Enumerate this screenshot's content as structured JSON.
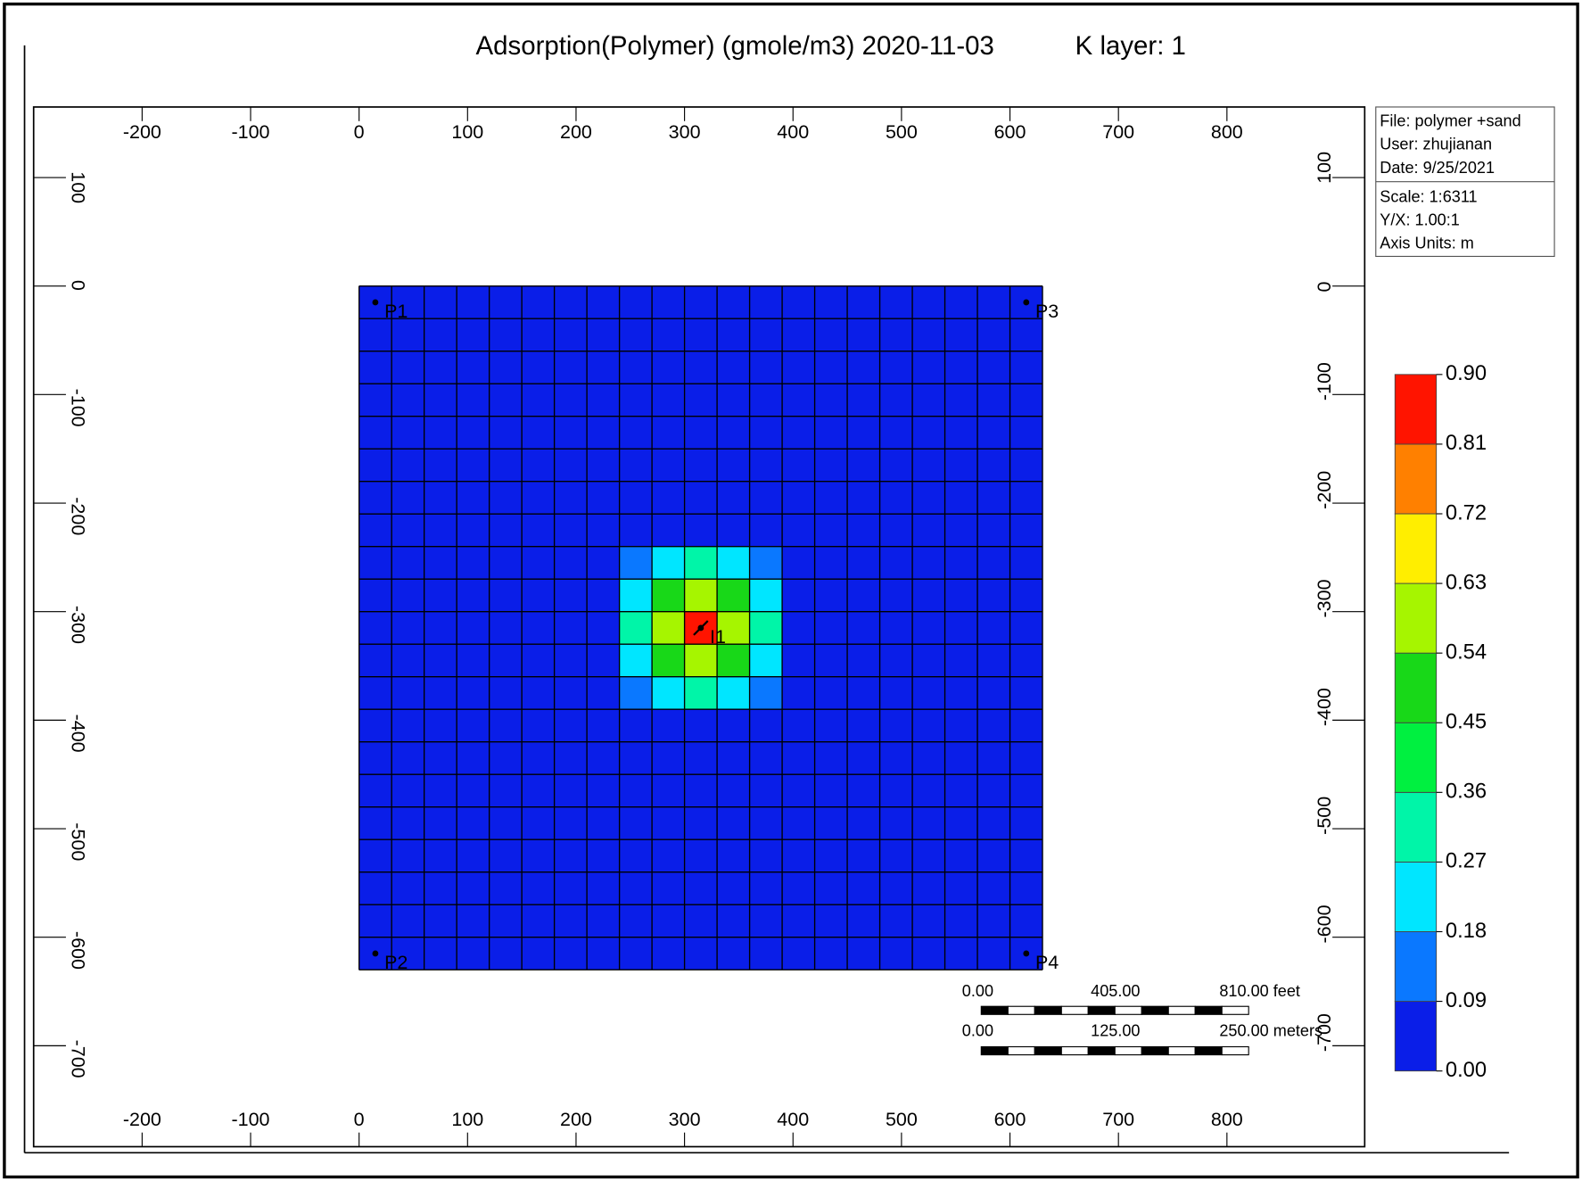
{
  "chart_data": {
    "type": "contour",
    "title": "Adsorption(Polymer) (gmole/m3) 2020-11-03",
    "subtitle": "K layer: 1",
    "xlim": [
      -300,
      927
    ],
    "ylim": [
      -793,
      165
    ],
    "xticks": [
      -200,
      -100,
      0,
      100,
      200,
      300,
      400,
      500,
      600,
      700,
      800
    ],
    "yticks": [
      100,
      0,
      -100,
      -200,
      -300,
      -400,
      -500,
      -600,
      -700
    ],
    "x_edges": [
      0,
      30,
      60,
      90,
      120,
      150,
      180,
      210,
      240,
      270,
      300,
      330,
      360,
      390,
      420,
      450,
      480,
      510,
      540,
      570,
      600,
      630
    ],
    "y_edges": [
      0,
      -30,
      -60,
      -90,
      -120,
      -150,
      -180,
      -210,
      -240,
      -270,
      -300,
      -330,
      -360,
      -390,
      -420,
      -450,
      -480,
      -510,
      -540,
      -570,
      -600,
      -630
    ],
    "z": [
      [
        0,
        0,
        0,
        0,
        0,
        0,
        0,
        0,
        0,
        0,
        0,
        0,
        0,
        0,
        0,
        0,
        0,
        0,
        0,
        0,
        0
      ],
      [
        0,
        0,
        0,
        0,
        0,
        0,
        0,
        0,
        0,
        0,
        0,
        0,
        0,
        0,
        0,
        0,
        0,
        0,
        0,
        0,
        0
      ],
      [
        0,
        0,
        0,
        0,
        0,
        0,
        0,
        0,
        0,
        0,
        0,
        0,
        0,
        0,
        0,
        0,
        0,
        0,
        0,
        0,
        0
      ],
      [
        0,
        0,
        0,
        0,
        0,
        0,
        0,
        0,
        0,
        0,
        0,
        0,
        0,
        0,
        0,
        0,
        0,
        0,
        0,
        0,
        0
      ],
      [
        0,
        0,
        0,
        0,
        0,
        0,
        0,
        0,
        0,
        0,
        0,
        0,
        0,
        0,
        0,
        0,
        0,
        0,
        0,
        0,
        0
      ],
      [
        0,
        0,
        0,
        0,
        0,
        0,
        0,
        0,
        0,
        0,
        0,
        0,
        0,
        0,
        0,
        0,
        0,
        0,
        0,
        0,
        0
      ],
      [
        0,
        0,
        0,
        0,
        0,
        0,
        0,
        0,
        0,
        0,
        0,
        0,
        0,
        0,
        0,
        0,
        0,
        0,
        0,
        0,
        0
      ],
      [
        0,
        0,
        0,
        0,
        0,
        0,
        0,
        0,
        0,
        0.05,
        0.08,
        0.05,
        0,
        0,
        0,
        0,
        0,
        0,
        0,
        0,
        0
      ],
      [
        0,
        0,
        0,
        0,
        0,
        0,
        0,
        0,
        0.1,
        0.25,
        0.3,
        0.25,
        0.1,
        0,
        0,
        0,
        0,
        0,
        0,
        0,
        0
      ],
      [
        0,
        0,
        0,
        0,
        0,
        0,
        0,
        0.05,
        0.25,
        0.5,
        0.62,
        0.5,
        0.25,
        0.05,
        0,
        0,
        0,
        0,
        0,
        0,
        0
      ],
      [
        0,
        0,
        0,
        0,
        0,
        0,
        0,
        0.08,
        0.3,
        0.62,
        0.9,
        0.62,
        0.3,
        0.08,
        0,
        0,
        0,
        0,
        0,
        0,
        0
      ],
      [
        0,
        0,
        0,
        0,
        0,
        0,
        0,
        0.05,
        0.25,
        0.5,
        0.62,
        0.5,
        0.25,
        0.05,
        0,
        0,
        0,
        0,
        0,
        0,
        0
      ],
      [
        0,
        0,
        0,
        0,
        0,
        0,
        0,
        0,
        0.1,
        0.25,
        0.3,
        0.25,
        0.1,
        0,
        0,
        0,
        0,
        0,
        0,
        0,
        0
      ],
      [
        0,
        0,
        0,
        0,
        0,
        0,
        0,
        0,
        0,
        0.05,
        0.08,
        0.05,
        0,
        0,
        0,
        0,
        0,
        0,
        0,
        0,
        0
      ],
      [
        0,
        0,
        0,
        0,
        0,
        0,
        0,
        0,
        0,
        0,
        0,
        0,
        0,
        0,
        0,
        0,
        0,
        0,
        0,
        0,
        0
      ],
      [
        0,
        0,
        0,
        0,
        0,
        0,
        0,
        0,
        0,
        0,
        0,
        0,
        0,
        0,
        0,
        0,
        0,
        0,
        0,
        0,
        0
      ],
      [
        0,
        0,
        0,
        0,
        0,
        0,
        0,
        0,
        0,
        0,
        0,
        0,
        0,
        0,
        0,
        0,
        0,
        0,
        0,
        0,
        0
      ],
      [
        0,
        0,
        0,
        0,
        0,
        0,
        0,
        0,
        0,
        0,
        0,
        0,
        0,
        0,
        0,
        0,
        0,
        0,
        0,
        0,
        0
      ],
      [
        0,
        0,
        0,
        0,
        0,
        0,
        0,
        0,
        0,
        0,
        0,
        0,
        0,
        0,
        0,
        0,
        0,
        0,
        0,
        0,
        0
      ],
      [
        0,
        0,
        0,
        0,
        0,
        0,
        0,
        0,
        0,
        0,
        0,
        0,
        0,
        0,
        0,
        0,
        0,
        0,
        0,
        0,
        0
      ],
      [
        0,
        0,
        0,
        0,
        0,
        0,
        0,
        0,
        0,
        0,
        0,
        0,
        0,
        0,
        0,
        0,
        0,
        0,
        0,
        0,
        0
      ]
    ],
    "levels": [
      {
        "value": 0,
        "label": "0.00"
      },
      {
        "value": 0.09,
        "label": "0.09"
      },
      {
        "value": 0.18,
        "label": "0.18"
      },
      {
        "value": 0.27,
        "label": "0.27"
      },
      {
        "value": 0.36,
        "label": "0.36"
      },
      {
        "value": 0.45,
        "label": "0.45"
      },
      {
        "value": 0.54,
        "label": "0.54"
      },
      {
        "value": 0.63,
        "label": "0.63"
      },
      {
        "value": 0.72,
        "label": "0.72"
      },
      {
        "value": 0.81,
        "label": "0.81"
      },
      {
        "value": 0.9,
        "label": "0.90"
      }
    ],
    "colors": [
      "#0a1ee8",
      "#0a78ff",
      "#00e6ff",
      "#00f5a8",
      "#00f040",
      "#18d818",
      "#a6f500",
      "#ffee00",
      "#ff8000",
      "#ff1400"
    ],
    "wells": [
      {
        "name": "P1",
        "x": 15,
        "y": -15
      },
      {
        "name": "P3",
        "x": 615,
        "y": -15
      },
      {
        "name": "I1",
        "x": 315,
        "y": -315
      },
      {
        "name": "P2",
        "x": 15,
        "y": -615
      },
      {
        "name": "P4",
        "x": 615,
        "y": -615
      }
    ],
    "info": [
      "File: polymer +sand",
      "User:  zhujianan",
      "Date: 9/25/2021",
      "Scale: 1:6311",
      "Y/X: 1.00:1",
      "Axis Units: m"
    ],
    "scale_feet": [
      "0.00",
      "405.00",
      "810.00 feet"
    ],
    "scale_meters": [
      "0.00",
      "125.00",
      "250.00 meters"
    ]
  }
}
